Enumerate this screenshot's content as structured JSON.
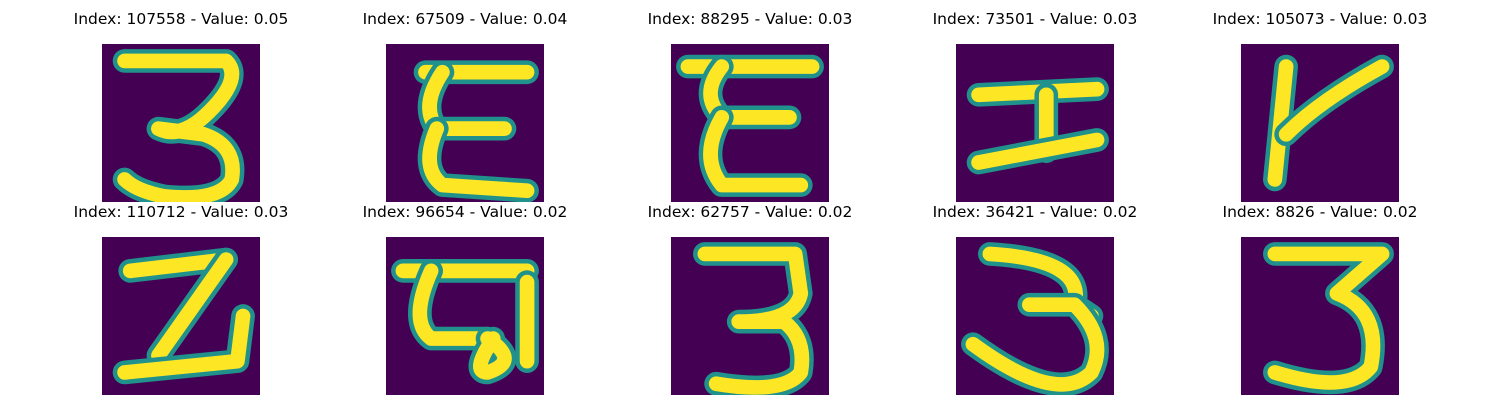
{
  "colors": {
    "background": "#440154",
    "mid": "#21918c",
    "stroke": "#fde725"
  },
  "panels": [
    {
      "title": "Index: 107558 - Value: 0.05",
      "glyph": "3",
      "strokes": [
        "M4,3 L22,3 Q25,6 19,12 Q14,17 10,15 L18,16 Q24,18 23,24 Q21,28 11,27 Q6,26 4,24"
      ]
    },
    {
      "title": "Index: 67509 - Value: 0.04",
      "glyph": "E",
      "strokes": [
        "M7,5 L25,5",
        "M10,5 Q6,11 9,15 L21,15",
        "M9,15 Q6,22 10,25 L25,26"
      ]
    },
    {
      "title": "Index: 88295 - Value: 0.03",
      "glyph": "E",
      "strokes": [
        "M3,4 L25,4",
        "M9,4 Q5,9 9,13 L21,13",
        "M9,13 Q5,20 9,25 L23,25"
      ]
    },
    {
      "title": "Index: 73501 - Value: 0.03",
      "glyph": "I",
      "strokes": [
        "M4,9 L25,8",
        "M16,9 L16,19",
        "M4,21 L25,17"
      ]
    },
    {
      "title": "Index: 105073 - Value: 0.03",
      "glyph": "Y",
      "strokes": [
        "M6,24 L8,4",
        "M8,16 Q14,10 25,4"
      ]
    },
    {
      "title": "Index: 110712 - Value: 0.03",
      "glyph": "2",
      "strokes": [
        "M5,6 L22,4",
        "M22,4 L10,21",
        "M4,24 L24,22 L25,14"
      ]
    },
    {
      "title": "Index: 96654 - Value: 0.02",
      "glyph": "Q",
      "strokes": [
        "M3,6 L25,6",
        "M8,6 Q4,15 8,18 L18,18",
        "M18,18 Q24,22 18,24 Q15,24 19,18",
        "M25,8 L25,22"
      ]
    },
    {
      "title": "Index: 62757 - Value: 0.02",
      "glyph": "3",
      "strokes": [
        "M6,3 L22,3 L23,10 Q22,15 12,15 L20,15 Q24,18 23,24 Q20,28 8,26"
      ]
    },
    {
      "title": "Index: 36421 - Value: 0.02",
      "glyph": "3",
      "strokes": [
        "M6,3 Q23,4 21,12 L24,14",
        "M13,12 L21,12 Q27,18 24,24 Q18,30 3,19"
      ]
    },
    {
      "title": "Index: 8826 - Value: 0.02",
      "glyph": "3",
      "strokes": [
        "M6,3 L25,3 L17,10 Q25,13 23,23 Q19,28 6,24"
      ]
    }
  ]
}
